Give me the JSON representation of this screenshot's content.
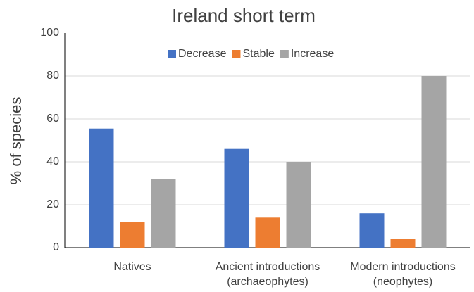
{
  "chart_data": {
    "type": "bar",
    "title": "Ireland short term",
    "y_label": "% of species",
    "categories": [
      [
        "Natives"
      ],
      [
        "Ancient introductions",
        "(archaeophytes)"
      ],
      [
        "Modern introductions",
        "(neophytes)"
      ]
    ],
    "series": [
      {
        "name": "Decrease",
        "color": "#4472c4",
        "values": [
          55.5,
          46,
          16
        ]
      },
      {
        "name": "Stable",
        "color": "#ed7d31",
        "values": [
          12,
          14,
          4
        ]
      },
      {
        "name": "Increase",
        "color": "#a5a5a5",
        "values": [
          32,
          40,
          80
        ]
      }
    ],
    "ylim": [
      0,
      100
    ],
    "yticks": [
      0,
      20,
      40,
      60,
      80,
      100
    ],
    "grid": true,
    "legend": "top"
  }
}
